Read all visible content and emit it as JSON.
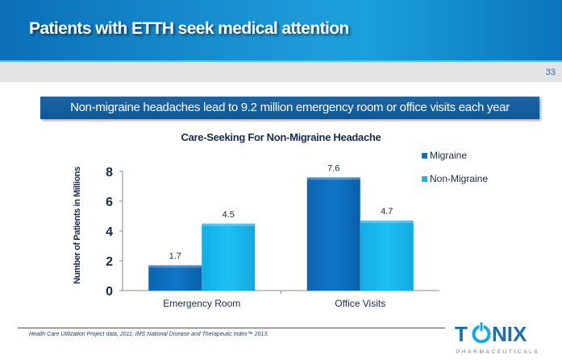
{
  "header": {
    "title": "Patients with ETTH seek medical attention",
    "page_number": "33"
  },
  "banner": {
    "text": "Non-migraine headaches lead to 9.2 million emergency room or office visits each year"
  },
  "colors": {
    "migraine": "#0e72c4",
    "non_migraine": "#18b8ee",
    "header": "#1a8fd2",
    "banner": "#165f9e"
  },
  "chart_data": {
    "type": "bar",
    "title": "Care-Seeking For Non-Migraine Headache",
    "xlabel": "",
    "ylabel": "Number of Patients in Millions",
    "categories": [
      "Emergency Room",
      "Office Visits"
    ],
    "series": [
      {
        "name": "Migraine",
        "values": [
          1.7,
          7.6
        ],
        "labels": [
          "1.7",
          "7.6"
        ]
      },
      {
        "name": "Non-Migraine",
        "values": [
          4.5,
          4.7
        ],
        "labels": [
          "4.5",
          "4.7"
        ]
      }
    ],
    "ylim": [
      0,
      8
    ],
    "yticks": [
      0,
      2,
      4,
      6,
      8
    ],
    "ytick_labels": [
      "0",
      "2",
      "4",
      "6",
      "8"
    ],
    "grid": false,
    "legend": "right"
  },
  "footer": {
    "source": "Health Care Utilization Project data, 2011; IMS National Disease and Therapeutic Index™ 2013.",
    "logo_text": "TONIX",
    "logo_subtext": "PHARMACEUTICALS"
  }
}
